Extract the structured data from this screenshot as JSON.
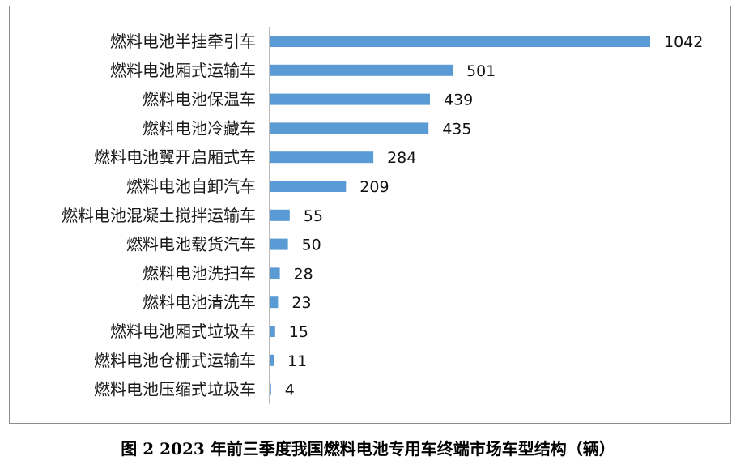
{
  "chart_data": {
    "type": "bar",
    "orientation": "horizontal",
    "categories": [
      "燃料电池半挂牵引车",
      "燃料电池厢式运输车",
      "燃料电池保温车",
      "燃料电池冷藏车",
      "燃料电池翼开启厢式车",
      "燃料电池自卸汽车",
      "燃料电池混凝土搅拌运输车",
      "燃料电池载货汽车",
      "燃料电池洗扫车",
      "燃料电池清洗车",
      "燃料电池厢式垃圾车",
      "燃料电池仓栅式运输车",
      "燃料电池压缩式垃圾车"
    ],
    "values": [
      1042,
      501,
      439,
      435,
      284,
      209,
      55,
      50,
      28,
      23,
      15,
      11,
      4
    ],
    "bar_color": "#5b9bd5",
    "data_labels": true,
    "grid": false,
    "xlim": [
      0,
      1042
    ],
    "title": "图 2  2023 年前三季度我国燃料电池专用车终端市场车型结构（辆）"
  }
}
